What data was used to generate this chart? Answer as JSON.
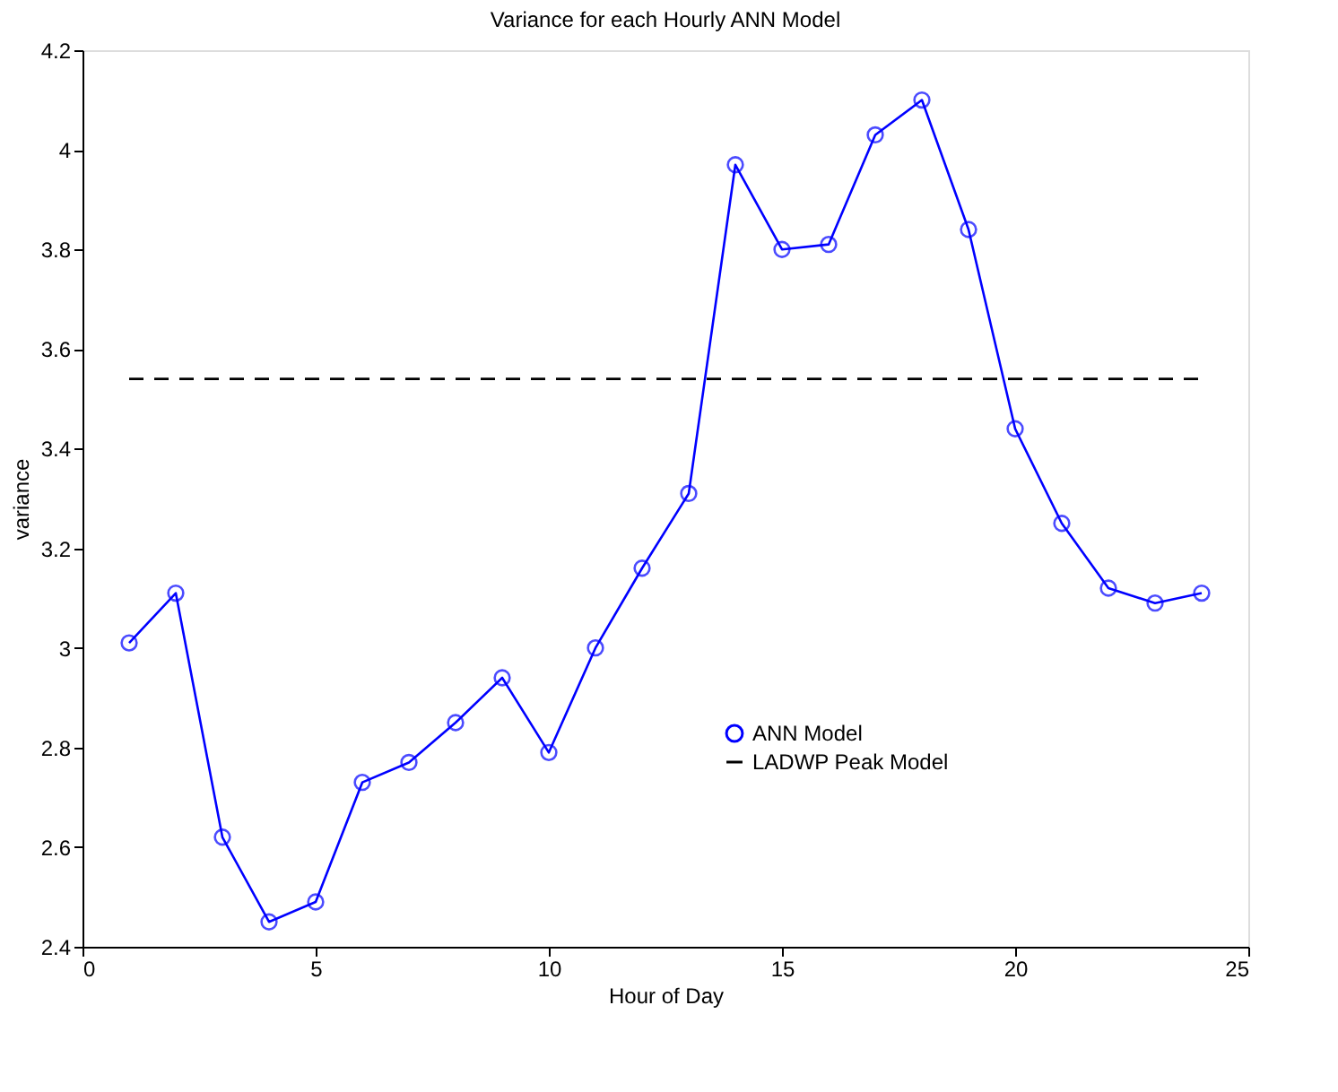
{
  "chart_data": {
    "type": "line",
    "title": "Variance for each Hourly ANN Model",
    "xlabel": "Hour of Day",
    "ylabel": "variance",
    "x": [
      1,
      2,
      3,
      4,
      5,
      6,
      7,
      8,
      9,
      10,
      11,
      12,
      13,
      14,
      15,
      16,
      17,
      18,
      19,
      20,
      21,
      22,
      23,
      24
    ],
    "series": [
      {
        "name": "ANN Model",
        "color": "#0000ff",
        "marker": "circle",
        "line_style": "solid",
        "values": [
          3.01,
          3.11,
          2.62,
          2.45,
          2.49,
          2.73,
          2.77,
          2.85,
          2.94,
          2.79,
          3.0,
          3.16,
          3.31,
          3.97,
          3.8,
          3.81,
          4.03,
          4.1,
          3.84,
          3.44,
          3.25,
          3.12,
          3.09,
          3.11
        ]
      },
      {
        "name": "LADWP Peak Model",
        "color": "#000000",
        "type": "line",
        "marker": "none",
        "line_style": "dashed",
        "x": [
          1,
          24
        ],
        "values": [
          3.54,
          3.54
        ]
      }
    ],
    "xlim": [
      0,
      25
    ],
    "xticks": [
      0,
      5,
      10,
      15,
      20,
      25
    ],
    "ylim": [
      2.4,
      4.2
    ],
    "yticks": [
      2.4,
      2.6,
      2.8,
      3,
      3.2,
      3.4,
      3.6,
      3.8,
      4,
      4.2
    ],
    "grid": false,
    "legend": "center"
  }
}
